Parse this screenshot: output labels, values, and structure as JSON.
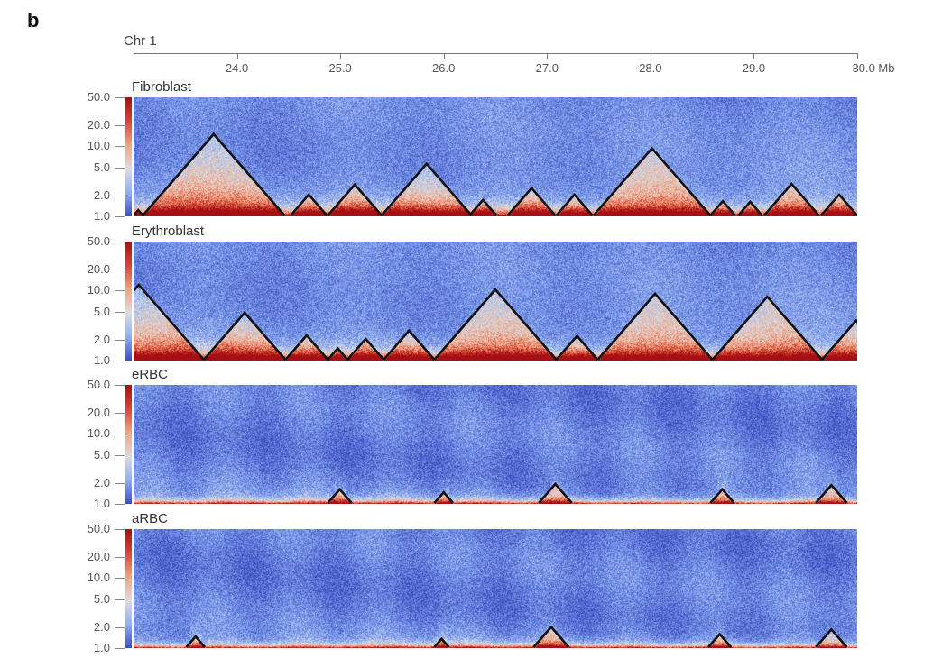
{
  "figure_label": "b",
  "chart_data": {
    "type": "heatmap",
    "chromosome": "Chr 1",
    "x_axis": {
      "unit": "Mb",
      "range": [
        23.0,
        30.0
      ],
      "ticks": [
        24,
        25,
        26,
        27,
        28,
        29,
        30
      ],
      "tick_labels": [
        "24.0",
        "25.0",
        "26.0",
        "27.0",
        "28.0",
        "29.0",
        "30.0 Mb"
      ]
    },
    "colorbar": {
      "scale": "log",
      "range": [
        1.0,
        50.0
      ],
      "ticks": [
        50,
        20,
        10,
        5,
        2,
        1
      ],
      "tick_labels": [
        "50.0",
        "20.0",
        "10.0",
        "5.0",
        "2.0",
        "1.0"
      ],
      "colors": [
        "#3a4cc0",
        "#8fb0f5",
        "#dddcdc",
        "#f2a385",
        "#d4472f",
        "#a50f15"
      ]
    },
    "panels": [
      {
        "name": "Fibroblast",
        "style": "tad",
        "domains_mb": [
          [
            23.0,
            23.09
          ],
          [
            23.09,
            24.46
          ],
          [
            24.52,
            24.87
          ],
          [
            24.88,
            25.4
          ],
          [
            25.4,
            26.27
          ],
          [
            26.25,
            26.51
          ],
          [
            26.62,
            27.08
          ],
          [
            27.09,
            27.44
          ],
          [
            27.45,
            28.58
          ],
          [
            28.58,
            28.82
          ],
          [
            28.85,
            29.08
          ],
          [
            29.1,
            29.63
          ],
          [
            29.65,
            30.0
          ]
        ]
      },
      {
        "name": "Erythroblast",
        "style": "tad",
        "domains_mb": [
          [
            22.42,
            23.68
          ],
          [
            23.68,
            24.47
          ],
          [
            24.47,
            24.88
          ],
          [
            24.88,
            25.07
          ],
          [
            25.07,
            25.42
          ],
          [
            25.42,
            25.91
          ],
          [
            25.91,
            27.09
          ],
          [
            27.09,
            27.49
          ],
          [
            27.49,
            28.6
          ],
          [
            28.6,
            29.66
          ],
          [
            29.66,
            30.32
          ]
        ]
      },
      {
        "name": "eRBC",
        "style": "rbc",
        "domains_mb": [
          [
            24.88,
            25.11
          ],
          [
            25.91,
            26.09
          ],
          [
            26.92,
            27.24
          ],
          [
            28.58,
            28.81
          ],
          [
            29.6,
            29.9
          ]
        ]
      },
      {
        "name": "aRBC",
        "style": "rbc",
        "domains_mb": [
          [
            23.51,
            23.69
          ],
          [
            25.91,
            26.05
          ],
          [
            26.87,
            27.21
          ],
          [
            28.56,
            28.78
          ],
          [
            29.6,
            29.9
          ]
        ]
      }
    ]
  }
}
